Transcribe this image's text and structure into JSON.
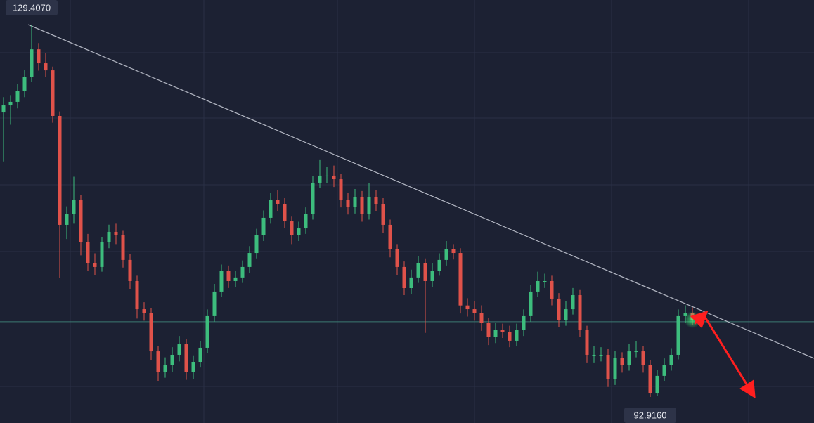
{
  "chart_data": {
    "type": "candlestick",
    "up_color": "#3dbd7d",
    "down_color": "#e0524a",
    "xlim": [
      -0.5,
      115.3
    ],
    "ylim": [
      90.37,
      131.82
    ],
    "open": [
      120.8,
      121.49,
      121.84,
      122.87,
      124.25,
      126.99,
      125.62,
      124.93,
      120.46,
      109.79,
      110.82,
      112.2,
      108.07,
      106.0,
      105.66,
      108.07,
      109.1,
      108.76,
      106.35,
      104.28,
      101.52,
      101.18,
      97.39,
      95.33,
      96.02,
      97.05,
      98.08,
      95.33,
      96.36,
      97.74,
      100.84,
      103.25,
      105.31,
      104.28,
      104.63,
      105.66,
      107.03,
      108.76,
      110.48,
      112.2,
      111.85,
      110.13,
      108.76,
      109.44,
      110.82,
      113.92,
      114.61,
      114.61,
      114.26,
      112.2,
      111.51,
      112.54,
      110.82,
      112.54,
      111.85,
      109.79,
      107.38,
      105.66,
      103.59,
      104.63,
      106.0,
      104.28,
      105.31,
      106.35,
      107.38,
      107.03,
      101.89,
      101.52,
      101.18,
      100.15,
      98.77,
      99.46,
      99.32,
      98.43,
      99.46,
      100.84,
      103.25,
      104.28,
      104.28,
      102.56,
      100.49,
      101.52,
      102.9,
      99.46,
      97.05,
      97.05,
      97.05,
      94.64,
      96.71,
      96.02,
      97.39,
      97.39,
      96.02,
      93.26,
      94.99,
      96.02,
      97.05,
      100.84,
      101.18
    ],
    "high": [
      122.3,
      122.5,
      123.6,
      125.0,
      129.407,
      127.6,
      126.6,
      125.3,
      120.9,
      111.6,
      114.5,
      112.7,
      108.9,
      107.0,
      108.6,
      109.8,
      109.9,
      109.2,
      106.9,
      104.8,
      102.2,
      101.6,
      97.9,
      96.8,
      97.8,
      98.9,
      98.6,
      97.0,
      98.4,
      101.5,
      104.0,
      105.9,
      105.8,
      105.3,
      106.3,
      107.7,
      109.4,
      111.2,
      112.9,
      113.2,
      112.4,
      110.6,
      110.1,
      111.5,
      114.6,
      116.2,
      115.5,
      115.6,
      114.8,
      112.9,
      113.3,
      113.1,
      113.9,
      113.2,
      112.4,
      110.3,
      107.9,
      106.2,
      105.4,
      106.7,
      106.5,
      106.0,
      107.0,
      108.2,
      107.9,
      107.5,
      102.6,
      102.3,
      101.9,
      100.7,
      100.2,
      100.1,
      99.9,
      100.1,
      101.5,
      103.9,
      105.2,
      105.0,
      104.8,
      103.1,
      102.3,
      103.6,
      103.4,
      99.9,
      97.9,
      97.8,
      97.6,
      97.4,
      97.3,
      98.1,
      98.4,
      97.9,
      96.5,
      95.6,
      96.7,
      97.7,
      101.5,
      101.9,
      101.7
    ],
    "low": [
      116.0,
      119.6,
      121.2,
      122.3,
      123.8,
      124.9,
      124.3,
      119.8,
      104.6,
      108.4,
      109.9,
      106.8,
      105.3,
      104.9,
      105.2,
      107.5,
      107.9,
      105.6,
      103.5,
      100.6,
      100.4,
      96.5,
      94.5,
      94.8,
      95.4,
      96.4,
      94.6,
      94.7,
      95.8,
      97.2,
      100.3,
      102.7,
      103.6,
      103.7,
      104.1,
      105.1,
      106.5,
      108.2,
      109.9,
      111.1,
      109.5,
      107.9,
      108.2,
      108.9,
      110.3,
      113.4,
      113.9,
      113.5,
      111.5,
      110.8,
      110.9,
      110.1,
      110.3,
      111.1,
      109.0,
      106.6,
      104.9,
      102.9,
      103.0,
      104.1,
      99.2,
      103.7,
      104.8,
      105.8,
      106.4,
      101.1,
      100.8,
      100.4,
      99.4,
      98.0,
      98.2,
      98.7,
      97.8,
      97.9,
      98.9,
      100.3,
      102.7,
      103.6,
      101.9,
      99.8,
      99.9,
      101.0,
      98.8,
      96.3,
      96.3,
      96.4,
      93.9,
      94.1,
      95.3,
      95.5,
      96.8,
      95.3,
      92.916,
      93.0,
      94.5,
      95.5,
      96.6,
      100.2,
      100.0
    ],
    "close": [
      121.49,
      121.84,
      122.87,
      124.25,
      126.99,
      125.62,
      124.93,
      120.46,
      109.79,
      110.82,
      112.2,
      108.07,
      106.0,
      105.66,
      108.07,
      109.1,
      108.76,
      106.35,
      104.28,
      101.52,
      101.18,
      97.39,
      95.33,
      96.02,
      97.05,
      98.08,
      95.33,
      96.36,
      97.74,
      100.84,
      103.25,
      105.31,
      104.28,
      104.63,
      105.66,
      107.03,
      108.76,
      110.48,
      112.2,
      111.85,
      110.13,
      108.76,
      109.44,
      110.82,
      113.92,
      114.61,
      114.61,
      114.26,
      112.2,
      111.51,
      112.54,
      110.82,
      112.54,
      111.85,
      109.79,
      107.38,
      105.66,
      103.59,
      104.63,
      106.0,
      104.28,
      105.31,
      106.35,
      107.38,
      107.03,
      101.89,
      101.52,
      101.18,
      100.15,
      98.77,
      99.46,
      99.32,
      98.43,
      99.46,
      100.84,
      103.25,
      104.28,
      104.28,
      102.56,
      100.49,
      101.52,
      102.9,
      99.46,
      97.05,
      97.05,
      97.05,
      94.64,
      96.71,
      96.02,
      97.39,
      97.39,
      96.02,
      93.26,
      94.99,
      96.02,
      97.05,
      100.84,
      101.18,
      100.49
    ],
    "annotations": [
      {
        "value": 129.407,
        "label": "129.4070",
        "index": 4
      },
      {
        "value": 92.916,
        "label": "92.9160",
        "index": 92
      }
    ],
    "trendline": {
      "x": [
        3.5,
        115.3
      ],
      "y": [
        129.407,
        96.71
      ],
      "color": "#b4b8c4"
    },
    "price_line": 100.29,
    "forecast": {
      "x": [
        98.3,
        99.6,
        106.5
      ],
      "y": [
        100.1,
        100.96,
        93.3
      ],
      "color": "#ff1f1f"
    }
  }
}
